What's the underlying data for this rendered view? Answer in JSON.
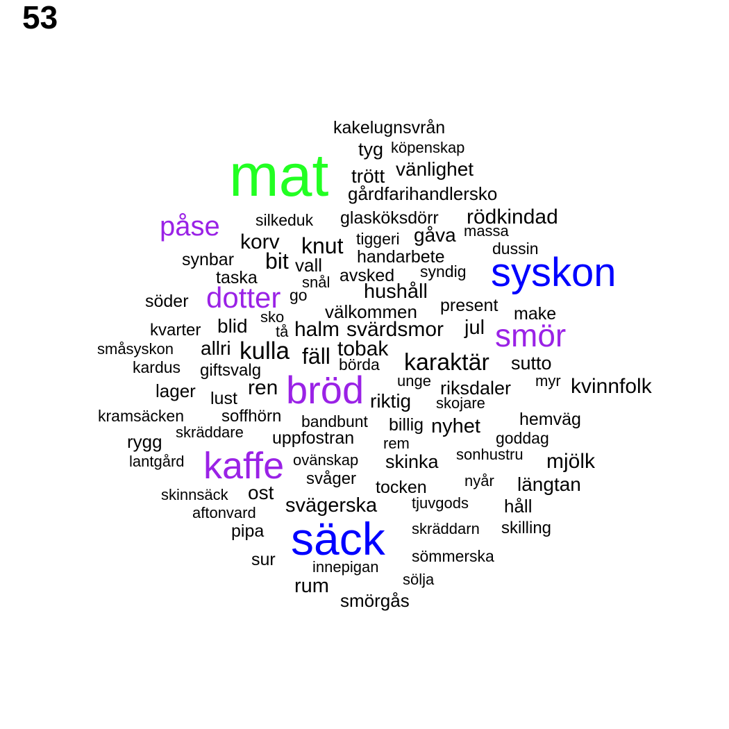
{
  "page_number": "53",
  "colors": {
    "default": "#000000",
    "green": "#22ff22",
    "blue": "#0000ff",
    "purple": "#9a22e6"
  },
  "words": [
    {
      "text": "kakelugnsvrån",
      "color": "default"
    },
    {
      "text": "tyg",
      "color": "default"
    },
    {
      "text": "köpenskap",
      "color": "default"
    },
    {
      "text": "mat",
      "color": "green"
    },
    {
      "text": "vänlighet",
      "color": "default"
    },
    {
      "text": "trött",
      "color": "default"
    },
    {
      "text": "gårdfarihandlersko",
      "color": "default"
    },
    {
      "text": "påse",
      "color": "purple"
    },
    {
      "text": "silkeduk",
      "color": "default"
    },
    {
      "text": "glasköksdörr",
      "color": "default"
    },
    {
      "text": "rödkindad",
      "color": "default"
    },
    {
      "text": "massa",
      "color": "default"
    },
    {
      "text": "gåva",
      "color": "default"
    },
    {
      "text": "korv",
      "color": "default"
    },
    {
      "text": "knut",
      "color": "default"
    },
    {
      "text": "tiggeri",
      "color": "default"
    },
    {
      "text": "dussin",
      "color": "default"
    },
    {
      "text": "synbar",
      "color": "default"
    },
    {
      "text": "bit",
      "color": "default"
    },
    {
      "text": "vall",
      "color": "default"
    },
    {
      "text": "handarbete",
      "color": "default"
    },
    {
      "text": "syskon",
      "color": "blue"
    },
    {
      "text": "taska",
      "color": "default"
    },
    {
      "text": "avsked",
      "color": "default"
    },
    {
      "text": "syndig",
      "color": "default"
    },
    {
      "text": "snål",
      "color": "default"
    },
    {
      "text": "hushåll",
      "color": "default"
    },
    {
      "text": "söder",
      "color": "default"
    },
    {
      "text": "dotter",
      "color": "purple"
    },
    {
      "text": "go",
      "color": "default"
    },
    {
      "text": "present",
      "color": "default"
    },
    {
      "text": "välkommen",
      "color": "default"
    },
    {
      "text": "make",
      "color": "default"
    },
    {
      "text": "sko",
      "color": "default"
    },
    {
      "text": "kvarter",
      "color": "default"
    },
    {
      "text": "blid",
      "color": "default"
    },
    {
      "text": "tå",
      "color": "default"
    },
    {
      "text": "halm",
      "color": "default"
    },
    {
      "text": "svärdsmor",
      "color": "default"
    },
    {
      "text": "jul",
      "color": "default"
    },
    {
      "text": "smör",
      "color": "purple"
    },
    {
      "text": "småsyskon",
      "color": "default"
    },
    {
      "text": "allri",
      "color": "default"
    },
    {
      "text": "kulla",
      "color": "default"
    },
    {
      "text": "fäll",
      "color": "default"
    },
    {
      "text": "tobak",
      "color": "default"
    },
    {
      "text": "kardus",
      "color": "default"
    },
    {
      "text": "börda",
      "color": "default"
    },
    {
      "text": "karaktär",
      "color": "default"
    },
    {
      "text": "sutto",
      "color": "default"
    },
    {
      "text": "giftsvalg",
      "color": "default"
    },
    {
      "text": "unge",
      "color": "default"
    },
    {
      "text": "myr",
      "color": "default"
    },
    {
      "text": "lager",
      "color": "default"
    },
    {
      "text": "ren",
      "color": "default"
    },
    {
      "text": "bröd",
      "color": "purple"
    },
    {
      "text": "riksdaler",
      "color": "default"
    },
    {
      "text": "kvinnfolk",
      "color": "default"
    },
    {
      "text": "lust",
      "color": "default"
    },
    {
      "text": "riktig",
      "color": "default"
    },
    {
      "text": "skojare",
      "color": "default"
    },
    {
      "text": "kramsäcken",
      "color": "default"
    },
    {
      "text": "soffhörn",
      "color": "default"
    },
    {
      "text": "hemväg",
      "color": "default"
    },
    {
      "text": "bandbunt",
      "color": "default"
    },
    {
      "text": "billig",
      "color": "default"
    },
    {
      "text": "nyhet",
      "color": "default"
    },
    {
      "text": "skräddare",
      "color": "default"
    },
    {
      "text": "rygg",
      "color": "default"
    },
    {
      "text": "uppfostran",
      "color": "default"
    },
    {
      "text": "goddag",
      "color": "default"
    },
    {
      "text": "rem",
      "color": "default"
    },
    {
      "text": "sonhustru",
      "color": "default"
    },
    {
      "text": "lantgård",
      "color": "default"
    },
    {
      "text": "kaffe",
      "color": "purple"
    },
    {
      "text": "ovänskap",
      "color": "default"
    },
    {
      "text": "skinka",
      "color": "default"
    },
    {
      "text": "mjölk",
      "color": "default"
    },
    {
      "text": "svåger",
      "color": "default"
    },
    {
      "text": "nyår",
      "color": "default"
    },
    {
      "text": "längtan",
      "color": "default"
    },
    {
      "text": "tocken",
      "color": "default"
    },
    {
      "text": "skinnsäck",
      "color": "default"
    },
    {
      "text": "ost",
      "color": "default"
    },
    {
      "text": "tjuvgods",
      "color": "default"
    },
    {
      "text": "svägerska",
      "color": "default"
    },
    {
      "text": "håll",
      "color": "default"
    },
    {
      "text": "aftonvard",
      "color": "default"
    },
    {
      "text": "säck",
      "color": "blue"
    },
    {
      "text": "skräddarn",
      "color": "default"
    },
    {
      "text": "skilling",
      "color": "default"
    },
    {
      "text": "pipa",
      "color": "default"
    },
    {
      "text": "sömmerska",
      "color": "default"
    },
    {
      "text": "sur",
      "color": "default"
    },
    {
      "text": "innepigan",
      "color": "default"
    },
    {
      "text": "sölja",
      "color": "default"
    },
    {
      "text": "rum",
      "color": "default"
    },
    {
      "text": "smörgås",
      "color": "default"
    }
  ]
}
